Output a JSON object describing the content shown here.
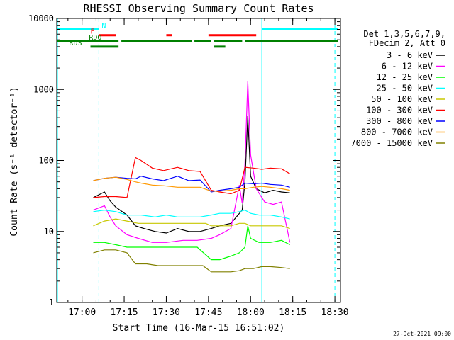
{
  "chart_data": {
    "type": "line",
    "title": "RHESSI Observing Summary Count Rates",
    "xlabel": "Start Time (16-Mar-15 16:51:02)",
    "ylabel": "Count Rate (s⁻¹ detector⁻¹)",
    "yscale": "log",
    "ylim": [
      1,
      10000
    ],
    "xlim_minutes_after_1651": [
      0,
      101
    ],
    "xticks": [
      {
        "t": 9,
        "label": "17:00"
      },
      {
        "t": 24,
        "label": "17:15"
      },
      {
        "t": 39,
        "label": "17:30"
      },
      {
        "t": 54,
        "label": "17:45"
      },
      {
        "t": 69,
        "label": "18:00"
      },
      {
        "t": 84,
        "label": "18:15"
      },
      {
        "t": 99,
        "label": "18:30"
      }
    ],
    "yticks": [
      {
        "v": 1,
        "label": "1"
      },
      {
        "v": 10,
        "label": "10"
      },
      {
        "v": 100,
        "label": "100"
      },
      {
        "v": 1000,
        "label": "1000"
      },
      {
        "v": 10000,
        "label": "10000"
      }
    ],
    "legend_header": [
      "Det 1,3,5,6,7,9,",
      "FDecim 2, Att 0"
    ],
    "series": [
      {
        "name": "3 - 6 keV",
        "color": "#000000",
        "points": [
          [
            13,
            30
          ],
          [
            17,
            36
          ],
          [
            19,
            27
          ],
          [
            21,
            22
          ],
          [
            25,
            17
          ],
          [
            28,
            12
          ],
          [
            31,
            11
          ],
          [
            35,
            10
          ],
          [
            39,
            9.5
          ],
          [
            43,
            11
          ],
          [
            47,
            10
          ],
          [
            51,
            10
          ],
          [
            55,
            11
          ],
          [
            58,
            12
          ],
          [
            62,
            13
          ],
          [
            66,
            20
          ],
          [
            67,
            50
          ],
          [
            68,
            420
          ],
          [
            69,
            60
          ],
          [
            71,
            40
          ],
          [
            74,
            35
          ],
          [
            77,
            38
          ],
          [
            80,
            36
          ],
          [
            83,
            35
          ]
        ]
      },
      {
        "name": "6 - 12 keV",
        "color": "#ff00ff",
        "points": [
          [
            13,
            20
          ],
          [
            17,
            23
          ],
          [
            19,
            16
          ],
          [
            21,
            12
          ],
          [
            25,
            9
          ],
          [
            29,
            8
          ],
          [
            34,
            7
          ],
          [
            39,
            7
          ],
          [
            45,
            7.5
          ],
          [
            50,
            7.5
          ],
          [
            55,
            8
          ],
          [
            58,
            9
          ],
          [
            62,
            11
          ],
          [
            65,
            45
          ],
          [
            66,
            25
          ],
          [
            67,
            90
          ],
          [
            68,
            1300
          ],
          [
            69,
            120
          ],
          [
            71,
            40
          ],
          [
            74,
            26
          ],
          [
            77,
            24
          ],
          [
            80,
            26
          ],
          [
            83,
            7
          ]
        ]
      },
      {
        "name": "12 - 25 keV",
        "color": "#00ff00",
        "points": [
          [
            13,
            7
          ],
          [
            17,
            7
          ],
          [
            21,
            6.5
          ],
          [
            25,
            6
          ],
          [
            30,
            6
          ],
          [
            35,
            6
          ],
          [
            40,
            6
          ],
          [
            45,
            6
          ],
          [
            50,
            6
          ],
          [
            55,
            4
          ],
          [
            58,
            4
          ],
          [
            62,
            4.5
          ],
          [
            65,
            5
          ],
          [
            67,
            6
          ],
          [
            68,
            12
          ],
          [
            69,
            8
          ],
          [
            72,
            7
          ],
          [
            76,
            7
          ],
          [
            80,
            7.5
          ],
          [
            83,
            6.5
          ]
        ]
      },
      {
        "name": "25 - 50 keV",
        "color": "#00ffff",
        "points": [
          [
            13,
            19
          ],
          [
            17,
            20
          ],
          [
            21,
            19
          ],
          [
            25,
            17
          ],
          [
            30,
            17
          ],
          [
            35,
            16
          ],
          [
            39,
            17
          ],
          [
            43,
            16
          ],
          [
            47,
            16
          ],
          [
            51,
            16
          ],
          [
            55,
            17
          ],
          [
            58,
            18
          ],
          [
            62,
            18
          ],
          [
            65,
            19
          ],
          [
            67,
            20
          ],
          [
            69,
            18
          ],
          [
            72,
            17
          ],
          [
            76,
            17
          ],
          [
            80,
            16
          ],
          [
            83,
            15
          ]
        ]
      },
      {
        "name": "50 - 100 keV",
        "color": "#c8c800",
        "points": [
          [
            13,
            12
          ],
          [
            17,
            14
          ],
          [
            21,
            15
          ],
          [
            25,
            14
          ],
          [
            29,
            13
          ],
          [
            33,
            13
          ],
          [
            37,
            13
          ],
          [
            41,
            13
          ],
          [
            45,
            13
          ],
          [
            49,
            13
          ],
          [
            53,
            13
          ],
          [
            55,
            12
          ],
          [
            58,
            12
          ],
          [
            62,
            12
          ],
          [
            65,
            13
          ],
          [
            67,
            13
          ],
          [
            69,
            12
          ],
          [
            72,
            12
          ],
          [
            76,
            12
          ],
          [
            80,
            12
          ],
          [
            83,
            11
          ]
        ]
      },
      {
        "name": "100 - 300 keV",
        "color": "#ff0000",
        "points": [
          [
            13,
            30
          ],
          [
            17,
            31
          ],
          [
            21,
            31
          ],
          [
            25,
            30
          ],
          [
            28,
            110
          ],
          [
            30,
            100
          ],
          [
            34,
            78
          ],
          [
            38,
            72
          ],
          [
            43,
            80
          ],
          [
            47,
            72
          ],
          [
            51,
            70
          ],
          [
            55,
            38
          ],
          [
            58,
            36
          ],
          [
            62,
            34
          ],
          [
            65,
            38
          ],
          [
            67,
            80
          ],
          [
            70,
            78
          ],
          [
            73,
            75
          ],
          [
            76,
            78
          ],
          [
            80,
            76
          ],
          [
            83,
            65
          ]
        ]
      },
      {
        "name": "300 - 800 keV",
        "color": "#0000ff",
        "points": [
          [
            13,
            52
          ],
          [
            17,
            56
          ],
          [
            21,
            58
          ],
          [
            25,
            56
          ],
          [
            28,
            55
          ],
          [
            30,
            60
          ],
          [
            34,
            55
          ],
          [
            38,
            52
          ],
          [
            43,
            60
          ],
          [
            47,
            52
          ],
          [
            51,
            53
          ],
          [
            55,
            36
          ],
          [
            58,
            38
          ],
          [
            62,
            40
          ],
          [
            65,
            42
          ],
          [
            67,
            48
          ],
          [
            70,
            47
          ],
          [
            73,
            48
          ],
          [
            76,
            46
          ],
          [
            80,
            45
          ],
          [
            83,
            42
          ]
        ]
      },
      {
        "name": "800 - 7000 keV",
        "color": "#ff9900",
        "points": [
          [
            13,
            52
          ],
          [
            17,
            56
          ],
          [
            21,
            58
          ],
          [
            25,
            54
          ],
          [
            28,
            50
          ],
          [
            30,
            48
          ],
          [
            34,
            45
          ],
          [
            38,
            44
          ],
          [
            43,
            42
          ],
          [
            47,
            42
          ],
          [
            51,
            42
          ],
          [
            55,
            37
          ],
          [
            58,
            37
          ],
          [
            62,
            38
          ],
          [
            65,
            40
          ],
          [
            67,
            40
          ],
          [
            70,
            42
          ],
          [
            73,
            43
          ],
          [
            76,
            42
          ],
          [
            80,
            40
          ],
          [
            83,
            38
          ]
        ]
      },
      {
        "name": "7000 - 15000 keV",
        "color": "#808000",
        "points": [
          [
            13,
            5
          ],
          [
            17,
            5.5
          ],
          [
            21,
            5.5
          ],
          [
            25,
            5
          ],
          [
            28,
            3.5
          ],
          [
            32,
            3.5
          ],
          [
            36,
            3.3
          ],
          [
            40,
            3.3
          ],
          [
            44,
            3.3
          ],
          [
            48,
            3.3
          ],
          [
            52,
            3.3
          ],
          [
            55,
            2.7
          ],
          [
            58,
            2.7
          ],
          [
            62,
            2.7
          ],
          [
            65,
            2.8
          ],
          [
            67,
            3
          ],
          [
            70,
            3
          ],
          [
            73,
            3.2
          ],
          [
            76,
            3.2
          ],
          [
            80,
            3.1
          ],
          [
            83,
            3
          ]
        ]
      }
    ],
    "status_bars": [
      {
        "label": "N",
        "color": "#00ffff",
        "segments": [
          [
            0,
            15
          ],
          [
            73,
            100
          ]
        ],
        "value": 7000
      },
      {
        "label": "F",
        "color": "#ff0000",
        "segments": [
          [
            15,
            21
          ],
          [
            39,
            41
          ],
          [
            54,
            71
          ]
        ],
        "value": 5800
      },
      {
        "label": "RDO",
        "color": "#008000",
        "segments": [
          [
            0,
            22
          ],
          [
            23,
            48
          ],
          [
            49,
            55
          ],
          [
            56,
            66
          ],
          [
            67,
            100
          ]
        ],
        "value": 4800
      },
      {
        "label": "RDS",
        "color": "#008000",
        "segments": [
          [
            12,
            22
          ],
          [
            56,
            60
          ]
        ],
        "value": 4000
      }
    ],
    "vertical_markers": [
      {
        "t": 15,
        "color": "#00ffff",
        "style": "dashed"
      },
      {
        "t": 73,
        "color": "#00ffff",
        "style": "solid"
      },
      {
        "t": 99,
        "color": "#00ffff",
        "style": "dashed"
      }
    ]
  },
  "footer": {
    "date": "27-Oct-2021 09:00"
  }
}
